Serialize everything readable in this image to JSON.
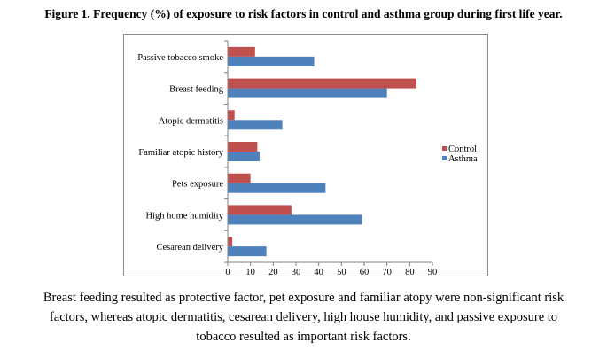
{
  "title": "Figure 1. Frequency (%) of exposure to risk factors in control and asthma group during first life year.",
  "caption": [
    "Breast feeding resulted as protective factor, pet exposure and familiar atopy were non-significant risk",
    "factors, whereas atopic dermatitis, cesarean delivery, high house humidity, and passive exposure to",
    "tobacco resulted as important risk factors."
  ],
  "chart_data": {
    "type": "bar",
    "orientation": "horizontal",
    "categories": [
      "Passive tobacco smoke",
      "Breast feeding",
      "Atopic dermatitis",
      "Familiar atopic history",
      "Pets exposure",
      "High home humidity",
      "Cesarean delivery"
    ],
    "series": [
      {
        "name": "Control",
        "color": "#c0504d",
        "values": [
          12,
          83,
          3,
          13,
          10,
          28,
          2
        ]
      },
      {
        "name": "Asthma",
        "color": "#4f81bd",
        "values": [
          38,
          70,
          24,
          14,
          43,
          59,
          17
        ]
      }
    ],
    "xlim": [
      0,
      90
    ],
    "xticks": [
      0,
      10,
      20,
      30,
      40,
      50,
      60,
      70,
      80,
      90
    ],
    "grid": false,
    "legend": "right"
  }
}
